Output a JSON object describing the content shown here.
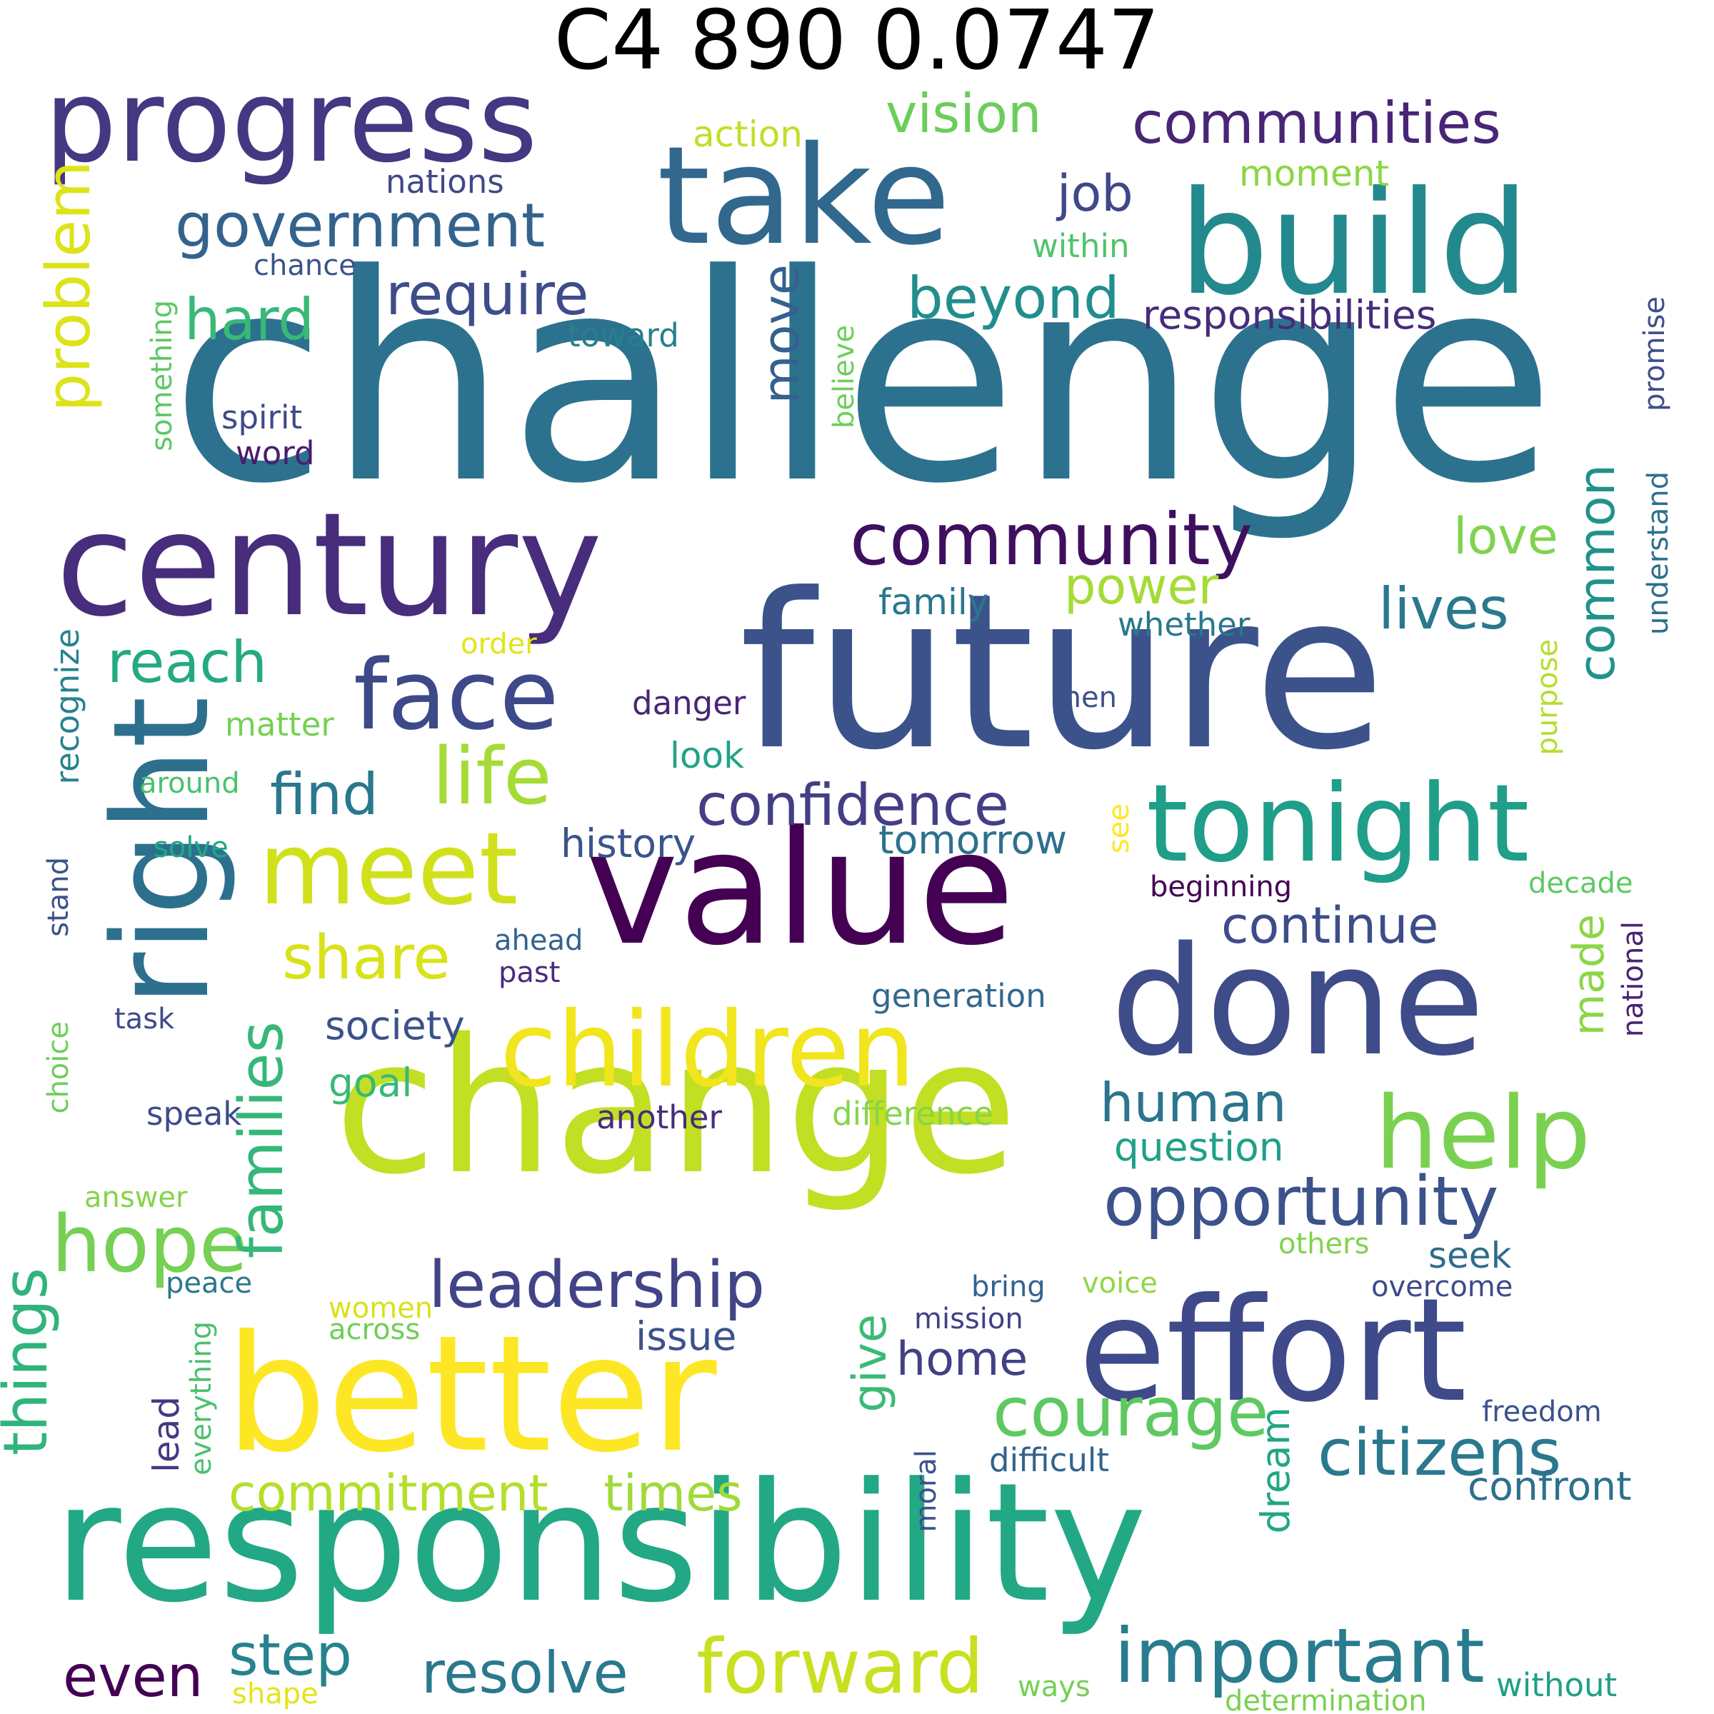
{
  "title": "C4 890 0.0747",
  "words": [
    {
      "text": "challenge",
      "color": "#2c728e"
    },
    {
      "text": "future",
      "color": "#3b528b"
    },
    {
      "text": "change",
      "color": "#c2df23"
    },
    {
      "text": "responsibility",
      "color": "#22a884"
    },
    {
      "text": "value",
      "color": "#440154"
    },
    {
      "text": "better",
      "color": "#fde725"
    },
    {
      "text": "effort",
      "color": "#3e4a89"
    },
    {
      "text": "done",
      "color": "#3e4c8a"
    },
    {
      "text": "build",
      "color": "#23898e"
    },
    {
      "text": "take",
      "color": "#31688e"
    },
    {
      "text": "century",
      "color": "#472d7b"
    },
    {
      "text": "right",
      "color": "#2d708e"
    },
    {
      "text": "progress",
      "color": "#453781"
    },
    {
      "text": "tonight",
      "color": "#1f9e89"
    },
    {
      "text": "children",
      "color": "#f1e51d"
    },
    {
      "text": "meet",
      "color": "#d0e11c"
    },
    {
      "text": "help",
      "color": "#7ad151"
    },
    {
      "text": "face",
      "color": "#3e4989"
    },
    {
      "text": "forward",
      "color": "#c8e020"
    },
    {
      "text": "important",
      "color": "#287c8e"
    },
    {
      "text": "community",
      "color": "#3f0f5f"
    },
    {
      "text": "hope",
      "color": "#75d054"
    },
    {
      "text": "courage",
      "color": "#5ec962"
    },
    {
      "text": "citizens",
      "color": "#2a788e"
    },
    {
      "text": "opportunity",
      "color": "#3b528b"
    },
    {
      "text": "leadership",
      "color": "#414487"
    },
    {
      "text": "confidence",
      "color": "#433e85"
    },
    {
      "text": "government",
      "color": "#33638d"
    },
    {
      "text": "communities",
      "color": "#482576"
    },
    {
      "text": "life",
      "color": "#a5db36"
    },
    {
      "text": "families",
      "color": "#35b779"
    },
    {
      "text": "things",
      "color": "#2fb47c"
    },
    {
      "text": "problem",
      "color": "#dde318"
    },
    {
      "text": "share",
      "color": "#d8e219"
    },
    {
      "text": "require",
      "color": "#3e4c8a"
    },
    {
      "text": "beyond",
      "color": "#228d8d"
    },
    {
      "text": "step",
      "color": "#26828e"
    },
    {
      "text": "resolve",
      "color": "#2a788e"
    },
    {
      "text": "even",
      "color": "#440154"
    },
    {
      "text": "reach",
      "color": "#24aa83"
    },
    {
      "text": "find",
      "color": "#29788e"
    },
    {
      "text": "vision",
      "color": "#6ccd5a"
    },
    {
      "text": "hard",
      "color": "#38b977"
    },
    {
      "text": "commitment",
      "color": "#b5de2b"
    },
    {
      "text": "times",
      "color": "#a0da39"
    },
    {
      "text": "common",
      "color": "#20928c"
    },
    {
      "text": "lives",
      "color": "#2a788e"
    },
    {
      "text": "human",
      "color": "#2b758e"
    },
    {
      "text": "continue",
      "color": "#3d4d8a"
    },
    {
      "text": "move",
      "color": "#34618d"
    },
    {
      "text": "job",
      "color": "#3f4889"
    },
    {
      "text": "love",
      "color": "#7fd34e"
    },
    {
      "text": "power",
      "color": "#a5db36"
    },
    {
      "text": "made",
      "color": "#8bd646"
    },
    {
      "text": "give",
      "color": "#3aba76"
    },
    {
      "text": "home",
      "color": "#424086"
    },
    {
      "text": "question",
      "color": "#1fa088"
    },
    {
      "text": "history",
      "color": "#3a548c"
    },
    {
      "text": "tomorrow",
      "color": "#2c718e"
    },
    {
      "text": "society",
      "color": "#3b518b"
    },
    {
      "text": "family",
      "color": "#2a768e"
    },
    {
      "text": "confront",
      "color": "#2d708e"
    },
    {
      "text": "seek",
      "color": "#2f6c8e"
    },
    {
      "text": "dream",
      "color": "#21a685"
    },
    {
      "text": "issue",
      "color": "#3b528b"
    },
    {
      "text": "goal",
      "color": "#38b977"
    },
    {
      "text": "action",
      "color": "#c0df25"
    },
    {
      "text": "moment",
      "color": "#8bd646"
    },
    {
      "text": "responsibilities",
      "color": "#472c7a"
    },
    {
      "text": "nations",
      "color": "#3f4889"
    },
    {
      "text": "within",
      "color": "#50c46a"
    },
    {
      "text": "toward",
      "color": "#277f8e"
    },
    {
      "text": "spirit",
      "color": "#3e4a89"
    },
    {
      "text": "word",
      "color": "#481d6f"
    },
    {
      "text": "chance",
      "color": "#3b528b"
    },
    {
      "text": "believe",
      "color": "#6ece58"
    },
    {
      "text": "something",
      "color": "#5cc863"
    },
    {
      "text": "promise",
      "color": "#3d4e8a"
    },
    {
      "text": "understand",
      "color": "#2e6f8e"
    },
    {
      "text": "recognize",
      "color": "#26828e"
    },
    {
      "text": "order",
      "color": "#e2e418"
    },
    {
      "text": "whether",
      "color": "#2a788e"
    },
    {
      "text": "danger",
      "color": "#482677"
    },
    {
      "text": "matter",
      "color": "#75d054"
    },
    {
      "text": "men",
      "color": "#3b528b"
    },
    {
      "text": "look",
      "color": "#20a386"
    },
    {
      "text": "purpose",
      "color": "#b5de2b"
    },
    {
      "text": "around",
      "color": "#4ac16d"
    },
    {
      "text": "solve",
      "color": "#22a785"
    },
    {
      "text": "see",
      "color": "#fde725"
    },
    {
      "text": "decade",
      "color": "#5ec962"
    },
    {
      "text": "beginning",
      "color": "#440154"
    },
    {
      "text": "stand",
      "color": "#3b528b"
    },
    {
      "text": "ahead",
      "color": "#33638d"
    },
    {
      "text": "past",
      "color": "#472d7b"
    },
    {
      "text": "national",
      "color": "#482475"
    },
    {
      "text": "generation",
      "color": "#31688e"
    },
    {
      "text": "task",
      "color": "#3e4a89"
    },
    {
      "text": "choice",
      "color": "#6ece58"
    },
    {
      "text": "speak",
      "color": "#3e4a89"
    },
    {
      "text": "another",
      "color": "#472d7b"
    },
    {
      "text": "difference",
      "color": "#86d549"
    },
    {
      "text": "answer",
      "color": "#84d44b"
    },
    {
      "text": "others",
      "color": "#7fd34e"
    },
    {
      "text": "peace",
      "color": "#2a788e"
    },
    {
      "text": "bring",
      "color": "#33638d"
    },
    {
      "text": "voice",
      "color": "#90d743"
    },
    {
      "text": "overcome",
      "color": "#3e4a89"
    },
    {
      "text": "women",
      "color": "#d8e219"
    },
    {
      "text": "across",
      "color": "#6ece58"
    },
    {
      "text": "mission",
      "color": "#424086"
    },
    {
      "text": "everything",
      "color": "#4ac16d"
    },
    {
      "text": "lead",
      "color": "#453882"
    },
    {
      "text": "freedom",
      "color": "#3b528b"
    },
    {
      "text": "moral",
      "color": "#3b528b"
    },
    {
      "text": "difficult",
      "color": "#33638d"
    },
    {
      "text": "ways",
      "color": "#75d054"
    },
    {
      "text": "shape",
      "color": "#e5e419"
    },
    {
      "text": "determination",
      "color": "#7ad151"
    },
    {
      "text": "without",
      "color": "#1fa088"
    }
  ]
}
